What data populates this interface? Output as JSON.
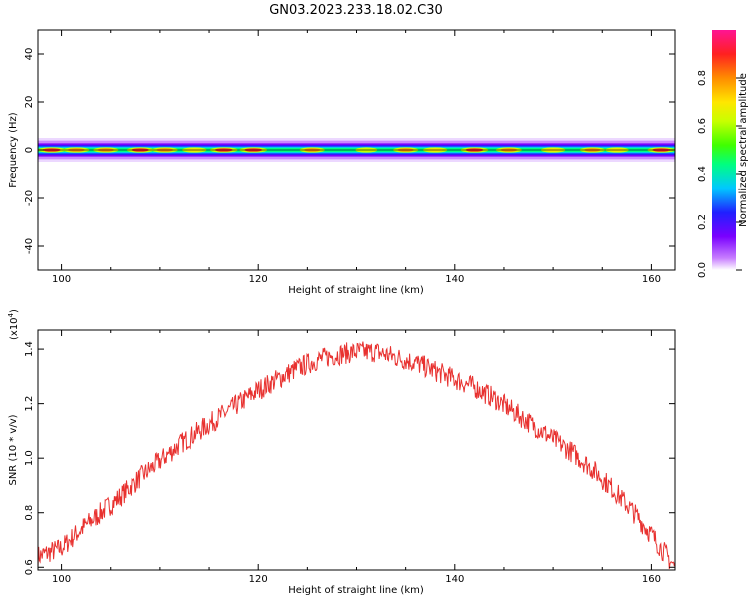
{
  "figure_title": "GN03.2023.233.18.02.C30",
  "colors": {
    "snr_line": "#e8312f",
    "frame": "#000000",
    "background": "#ffffff"
  },
  "chart_data": [
    {
      "type": "heatmap",
      "xlabel": "Height of straight line (km)",
      "ylabel": "Frequency (Hz)",
      "xlim": [
        97.6,
        162.4
      ],
      "ylim": [
        -50,
        50
      ],
      "x_ticks": [
        100,
        120,
        140,
        160
      ],
      "y_ticks": [
        -40,
        -20,
        0,
        20,
        40
      ],
      "grid": false,
      "band_center_hz": 0,
      "band_halfwidth_hz": 5,
      "colorbar": {
        "label": "Normalized spectral amplitude",
        "range": [
          0.0,
          1.0
        ],
        "ticks": [
          0.0,
          0.2,
          0.4,
          0.6,
          0.8
        ],
        "colormap": [
          "#ffffff",
          "#c77dff",
          "#7a00ff",
          "#2020ff",
          "#00c8ff",
          "#00ff80",
          "#40ff00",
          "#c8ff00",
          "#ffe600",
          "#ff8c00",
          "#ff2020",
          "#ff1493"
        ]
      },
      "hotspots": [
        {
          "x": 99.0,
          "amplitude": 0.95
        },
        {
          "x": 101.5,
          "amplitude": 0.85
        },
        {
          "x": 104.5,
          "amplitude": 0.8
        },
        {
          "x": 108.0,
          "amplitude": 0.9
        },
        {
          "x": 110.5,
          "amplitude": 0.85
        },
        {
          "x": 113.5,
          "amplitude": 0.75
        },
        {
          "x": 116.5,
          "amplitude": 0.95
        },
        {
          "x": 119.5,
          "amplitude": 0.95
        },
        {
          "x": 125.5,
          "amplitude": 0.8
        },
        {
          "x": 131.0,
          "amplitude": 0.6
        },
        {
          "x": 135.0,
          "amplitude": 0.8
        },
        {
          "x": 138.0,
          "amplitude": 0.75
        },
        {
          "x": 142.0,
          "amplitude": 0.95
        },
        {
          "x": 145.5,
          "amplitude": 0.85
        },
        {
          "x": 150.0,
          "amplitude": 0.75
        },
        {
          "x": 154.0,
          "amplitude": 0.8
        },
        {
          "x": 156.5,
          "amplitude": 0.7
        },
        {
          "x": 161.0,
          "amplitude": 0.95
        }
      ]
    },
    {
      "type": "line",
      "xlabel": "Height of straight line (km)",
      "ylabel": "SNR (10 * v/v)",
      "y_multiplier": "(x10",
      "y_multiplier_exp": "4",
      "xlim": [
        97.6,
        162.4
      ],
      "ylim": [
        0.59,
        1.47
      ],
      "x_ticks": [
        100,
        120,
        140,
        160
      ],
      "y_ticks": [
        0.6,
        0.8,
        1.0,
        1.2,
        1.4
      ],
      "y_tick_labels": [
        "0.6",
        "0.8",
        "1.0",
        "1.2",
        "1.4"
      ],
      "grid": false,
      "series": [
        {
          "x": [
            97.6,
            100,
            102,
            104,
            106,
            108,
            110,
            112,
            114,
            116,
            118,
            120,
            122,
            124,
            126,
            128,
            130,
            132,
            134,
            136,
            138,
            140,
            142,
            144,
            146,
            148,
            150,
            152,
            154,
            156,
            158,
            160,
            162.4
          ],
          "values": [
            0.64,
            0.67,
            0.74,
            0.8,
            0.86,
            0.93,
            0.99,
            1.05,
            1.1,
            1.15,
            1.2,
            1.25,
            1.29,
            1.33,
            1.36,
            1.38,
            1.39,
            1.39,
            1.37,
            1.35,
            1.32,
            1.29,
            1.26,
            1.22,
            1.17,
            1.12,
            1.07,
            1.02,
            0.96,
            0.89,
            0.81,
            0.72,
            0.6
          ]
        }
      ]
    }
  ]
}
